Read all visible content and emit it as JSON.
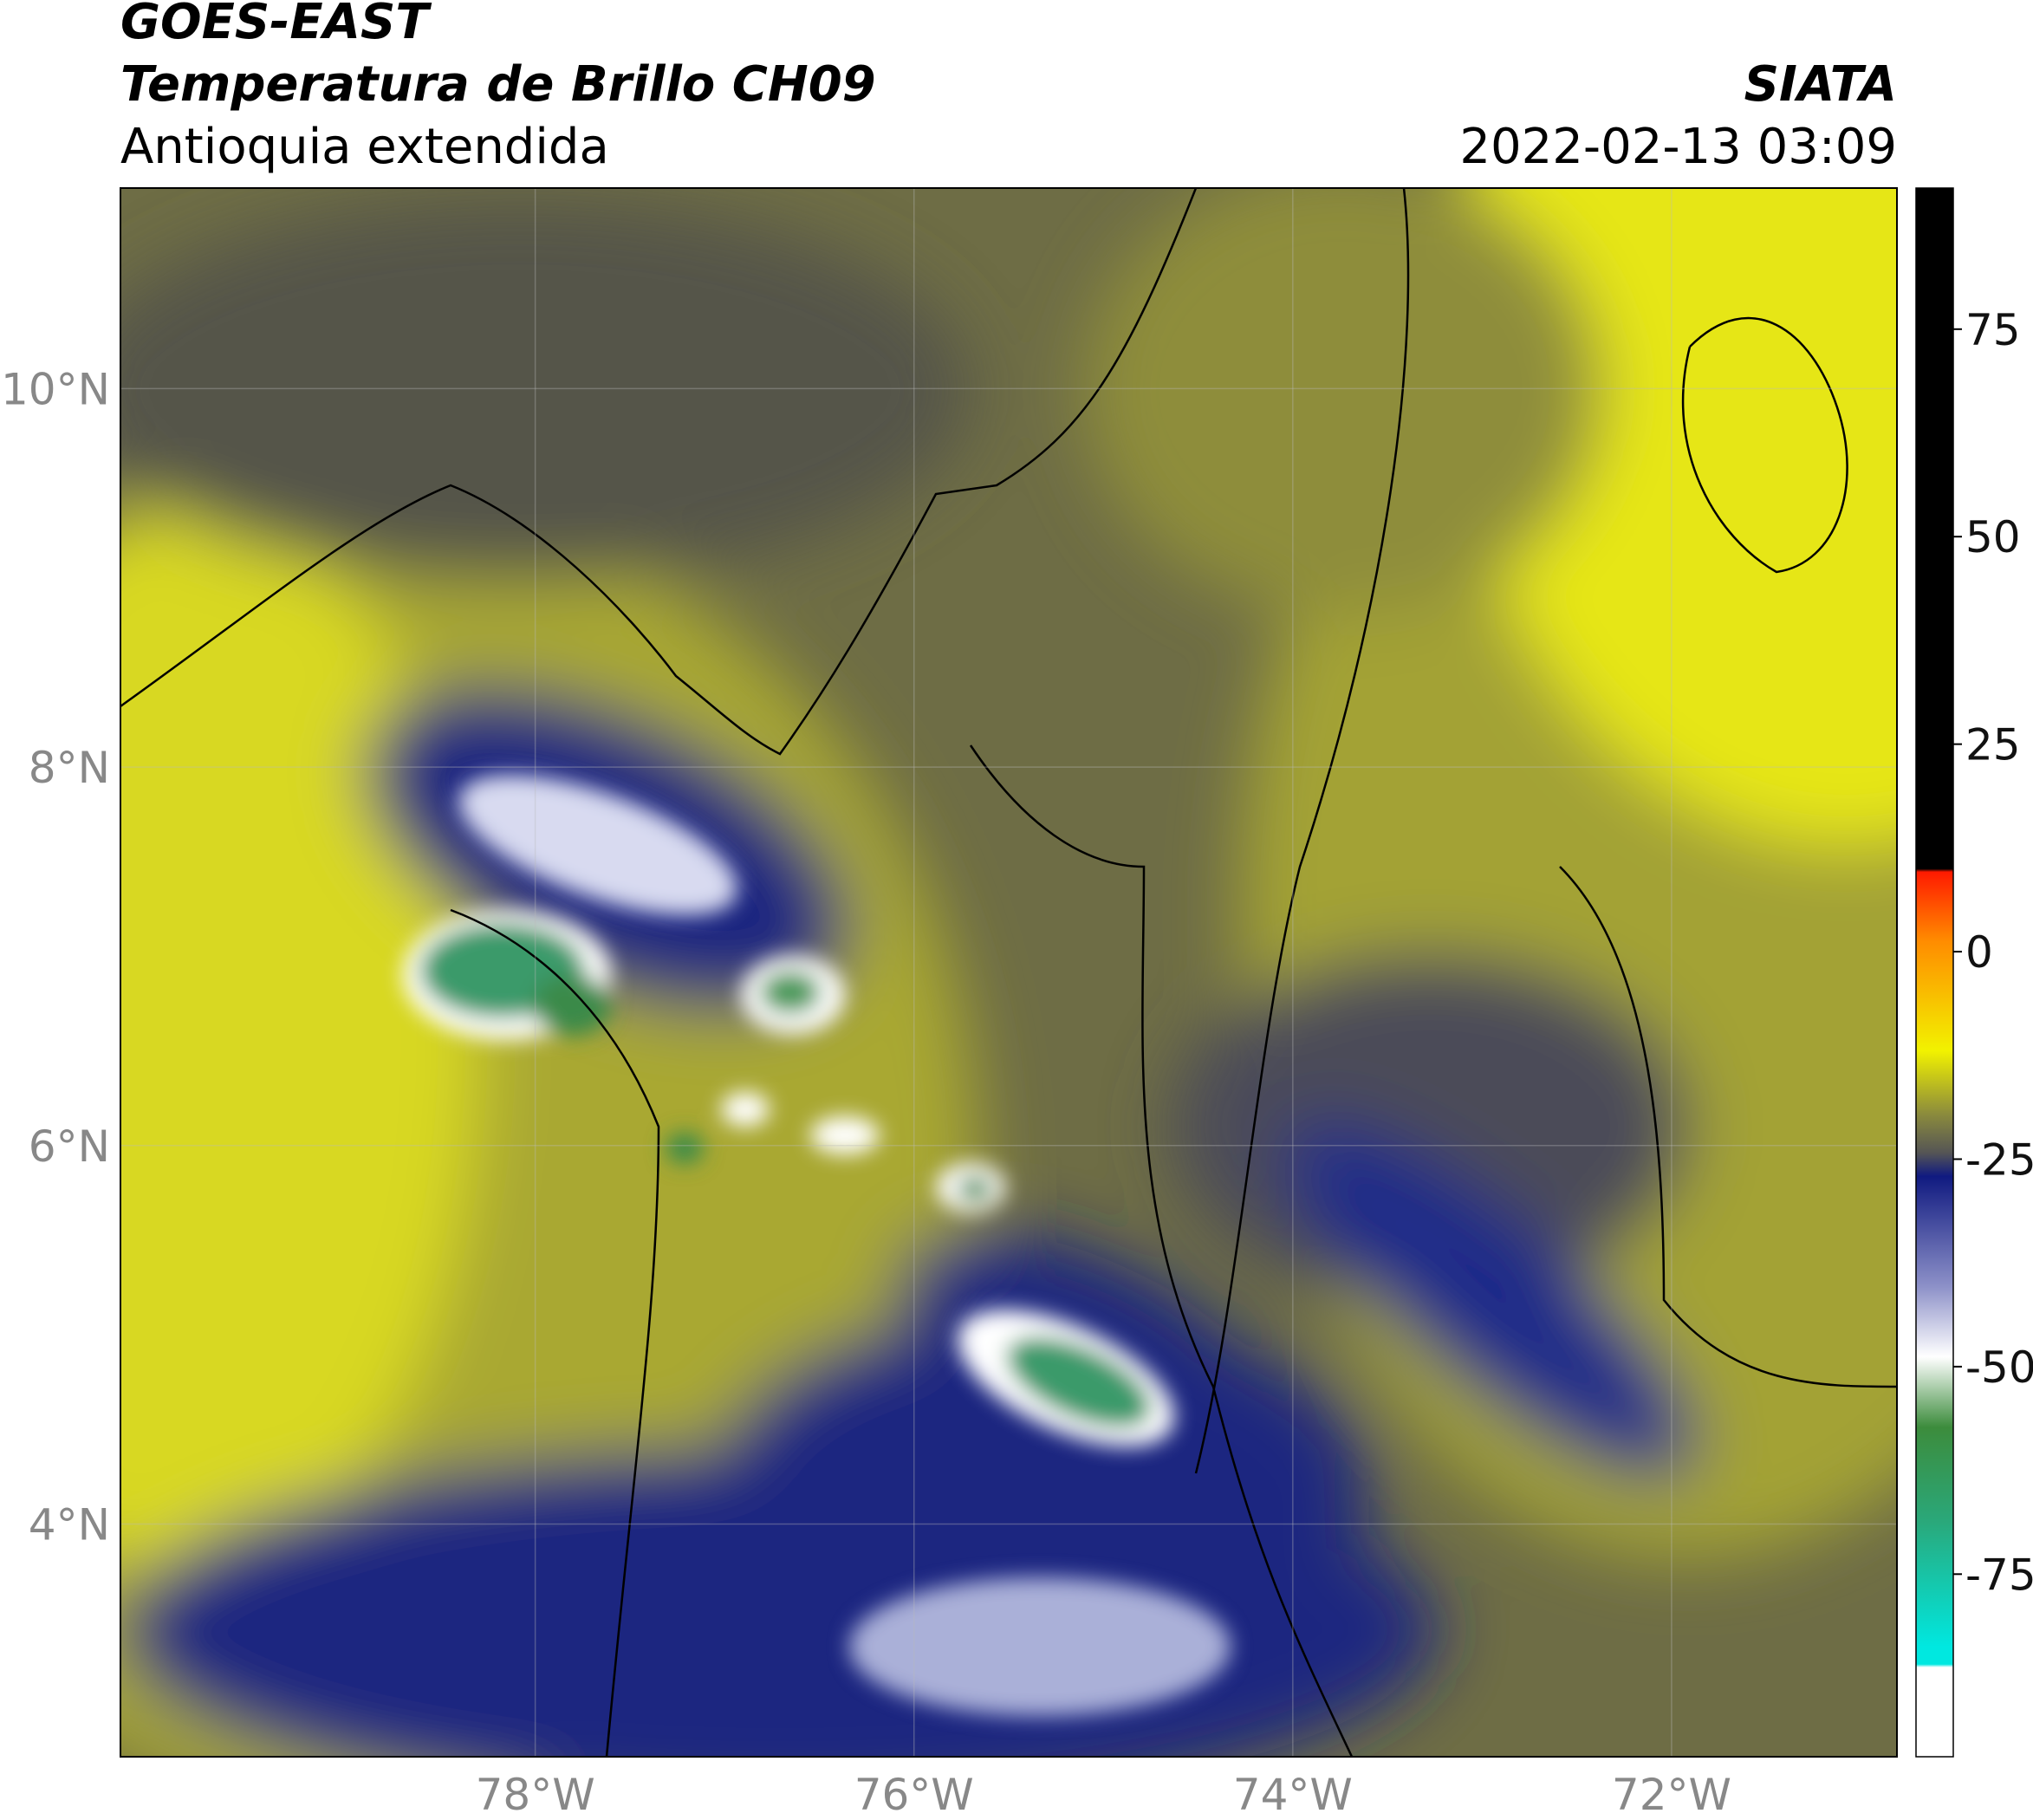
{
  "header": {
    "satellite": "GOES-EAST",
    "product": "Temperatura de Brillo CH09",
    "region": "Antioquia extendida",
    "agency": "SIATA",
    "datetime": "2022-02-13 03:09"
  },
  "map": {
    "xlim": [
      -80.19,
      -70.81
    ],
    "ylim": [
      2.77,
      11.06
    ],
    "grid": true,
    "xticks": [
      {
        "value": -78,
        "label": "78°W"
      },
      {
        "value": -76,
        "label": "76°W"
      },
      {
        "value": -74,
        "label": "74°W"
      },
      {
        "value": -72,
        "label": "72°W"
      }
    ],
    "yticks": [
      {
        "value": 4,
        "label": "4°N"
      },
      {
        "value": 6,
        "label": "6°N"
      },
      {
        "value": 8,
        "label": "8°N"
      },
      {
        "value": 10,
        "label": "10°N"
      }
    ]
  },
  "colorbar": {
    "lim": [
      -97,
      92
    ],
    "ticks": [
      -75,
      -50,
      -25,
      0,
      25,
      50,
      75
    ]
  }
}
